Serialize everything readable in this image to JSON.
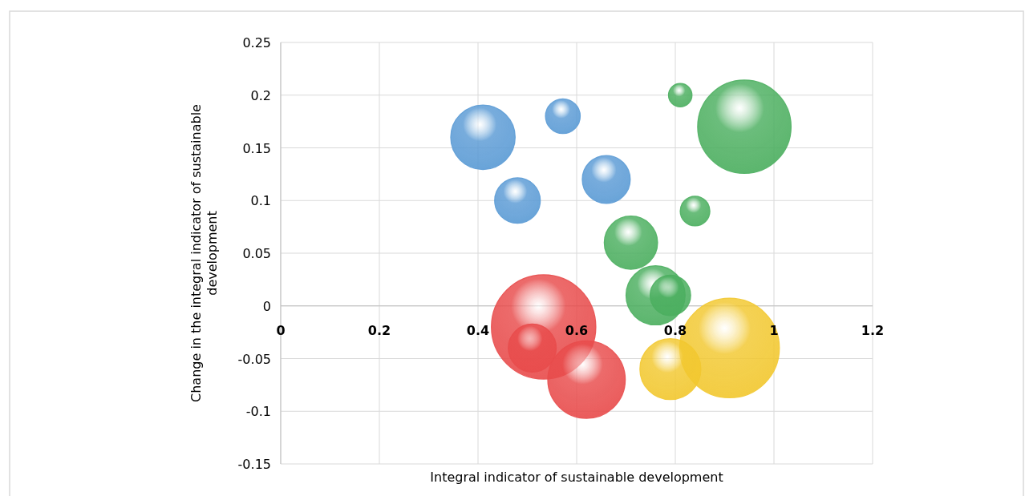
{
  "chart_data": {
    "type": "bubble",
    "xlabel": "Integral indicator of sustainable development",
    "ylabel": "Change in the integral indicator of sustainable development",
    "xlim": [
      0,
      1.2
    ],
    "xticks": [
      0,
      0.2,
      0.4,
      0.6,
      0.8,
      1,
      1.2
    ],
    "ylim": [
      -0.15,
      0.25
    ],
    "yticks": [
      -0.15,
      -0.1,
      -0.05,
      0,
      0.05,
      0.1,
      0.15,
      0.2,
      0.25
    ],
    "grid": true,
    "series": [
      {
        "color": "#5b9bd5",
        "x": [
          0.41,
          0.572,
          0.48,
          0.66
        ],
        "values": [
          0.16,
          0.18,
          0.1,
          0.12
        ],
        "sizes": [
          0.38,
          0.11,
          0.19,
          0.21
        ]
      },
      {
        "color": "#4caf60",
        "x": [
          0.81,
          0.94,
          0.84,
          0.71,
          0.76,
          0.79
        ],
        "values": [
          0.2,
          0.17,
          0.09,
          0.06,
          0.01,
          0.01
        ],
        "sizes": [
          0.05,
          0.8,
          0.08,
          0.26,
          0.32,
          0.15
        ]
      },
      {
        "color": "#e84c4c",
        "x": [
          0.533,
          0.51,
          0.62
        ],
        "values": [
          -0.02,
          -0.04,
          -0.07
        ],
        "sizes": [
          1,
          0.21,
          0.55
        ]
      },
      {
        "color": "#f2c830",
        "x": [
          0.91,
          0.79
        ],
        "values": [
          -0.04,
          -0.06
        ],
        "sizes": [
          0.91,
          0.34
        ]
      }
    ]
  }
}
